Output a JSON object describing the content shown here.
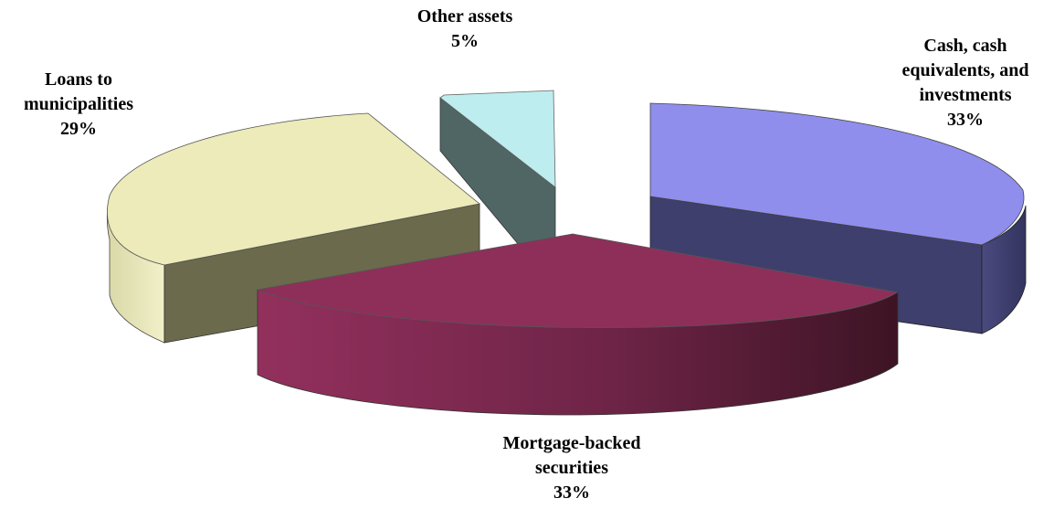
{
  "chart_data": {
    "type": "pie",
    "style": "3d-exploded",
    "title": "",
    "slices": [
      {
        "label_lines": [
          "Cash, cash",
          "equivalents, and",
          "investments"
        ],
        "pct_label": "33%",
        "value": 33,
        "color": "#8F8EEC",
        "side_color": "#3F3F6E"
      },
      {
        "label_lines": [
          "Mortgage-backed",
          "securities"
        ],
        "pct_label": "33%",
        "value": 33,
        "color": "#8E2F5A",
        "side_color": "#7A2A4F"
      },
      {
        "label_lines": [
          "Loans to",
          "municipalities"
        ],
        "pct_label": "29%",
        "value": 29,
        "color": "#ECEBB9",
        "side_color": "#6B6A4C"
      },
      {
        "label_lines": [
          "Other assets"
        ],
        "pct_label": "5%",
        "value": 5,
        "color": "#BDEDEE",
        "side_color": "#506665"
      }
    ]
  }
}
